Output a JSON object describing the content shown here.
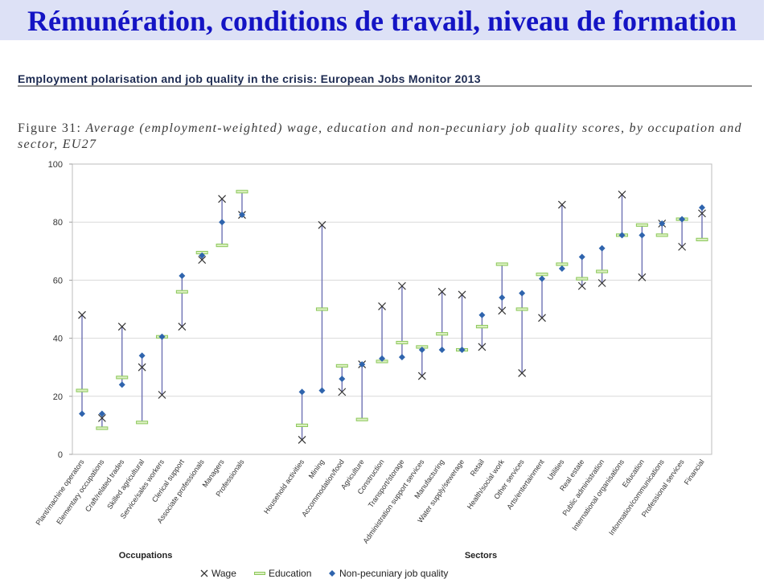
{
  "slide": {
    "title": "Rémunération, conditions de travail, niveau de formation"
  },
  "report": {
    "header": "Employment polarisation and job quality in the crisis: European Jobs Monitor 2013"
  },
  "colors": {
    "title_text": "#1414c4",
    "title_band": "#dde1f6",
    "report_header": "#1d2b52",
    "wage_marker": "#333333",
    "education_marker": "#8cc85a",
    "education_fill": "#dcefc3",
    "npjq_marker": "#2f64ad",
    "range_line": "#6e72b4",
    "grid": "#d9d9d9"
  },
  "chart_data": {
    "type": "scatter",
    "figure_label": "Figure 31:",
    "title": "Average (employment-weighted) wage, education and non-pecuniary job quality scores, by occupation and\nsector, EU27",
    "ylim": [
      0,
      100
    ],
    "yticks": [
      0,
      20,
      40,
      60,
      80,
      100
    ],
    "grid": true,
    "legend_position": "bottom",
    "groups": [
      {
        "name": "Occupations",
        "categories": [
          "Plant/machine operators",
          "Elementary occupations",
          "Craft/related trades",
          "Skilled agricultural",
          "Service/sales workers",
          "Clerical support",
          "Associate professionals",
          "Managers",
          "Professionals"
        ]
      },
      {
        "name": "Sectors",
        "categories": [
          "Household activities",
          "Mining",
          "Accommodation/food",
          "Agriculture",
          "Construction",
          "Transport/storage",
          "Administration support services",
          "Manufacturing",
          "Water supply/sewerage",
          "Retail",
          "Health/social work",
          "Other services",
          "Arts/entertainment",
          "Utilities",
          "Real estate",
          "Public administration",
          "International organisations",
          "Education",
          "Information/communications",
          "Professional services",
          "Financial"
        ]
      }
    ],
    "series": [
      {
        "name": "Wage",
        "marker": "x",
        "values": [
          48,
          12.5,
          44,
          30,
          20.5,
          44,
          67,
          88,
          82.5,
          5,
          79,
          21.5,
          31,
          51,
          58,
          27,
          56,
          55,
          37,
          49.5,
          28,
          47,
          86,
          58,
          59,
          89.5,
          61,
          79.5,
          71.5,
          83
        ]
      },
      {
        "name": "Education",
        "marker": "dash",
        "values": [
          22,
          9,
          26.5,
          11,
          40.5,
          56,
          69.5,
          72,
          90.5,
          10,
          50,
          30.5,
          12,
          32,
          38.5,
          37,
          41.5,
          36,
          44,
          65.5,
          50,
          62,
          65.5,
          60.5,
          63,
          75.5,
          79,
          75.5,
          81,
          74
        ]
      },
      {
        "name": "Non-pecuniary job quality",
        "marker": "diamond",
        "values": [
          14,
          14,
          24,
          34,
          40.5,
          61.5,
          68.5,
          80,
          82.5,
          21.5,
          22,
          26,
          31,
          33,
          33.5,
          36,
          36,
          36,
          48,
          54,
          55.5,
          60.5,
          64,
          68,
          71,
          75.5,
          75.5,
          79.5,
          81,
          85
        ]
      }
    ]
  }
}
